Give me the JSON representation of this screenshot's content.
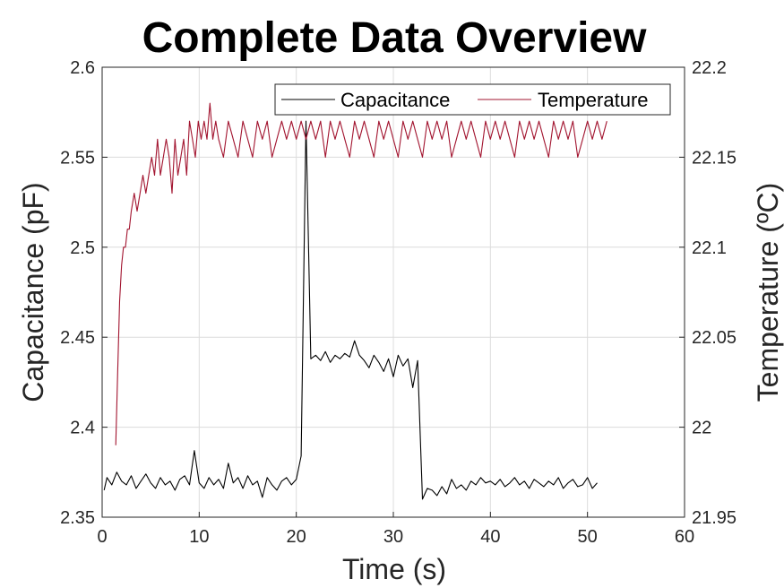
{
  "chart_data": {
    "type": "line",
    "title": "Complete Data Overview",
    "xlabel": "Time (s)",
    "ylabel_left": "Capacitance (pF)",
    "ylabel_right": "Temperature (ºC)",
    "xlim": [
      0,
      60
    ],
    "ylim_left": [
      2.35,
      2.6
    ],
    "ylim_right": [
      21.95,
      22.2
    ],
    "x_ticks": [
      "0",
      "10",
      "20",
      "30",
      "40",
      "50",
      "60"
    ],
    "y_ticks_left": [
      "2.35",
      "2.4",
      "2.45",
      "2.5",
      "2.55",
      "2.6"
    ],
    "y_ticks_right": [
      "21.95",
      "22",
      "22.05",
      "22.1",
      "22.15",
      "22.2"
    ],
    "grid": true,
    "legend_position": "top-right",
    "series": [
      {
        "name": "Capacitance",
        "axis": "left",
        "color": "#000000",
        "x": [
          0.2,
          0.5,
          1.0,
          1.5,
          2.0,
          2.5,
          3.0,
          3.5,
          4.0,
          4.5,
          5.0,
          5.5,
          6.0,
          6.5,
          7.0,
          7.5,
          8.0,
          8.5,
          9.0,
          9.5,
          10.0,
          10.5,
          11.0,
          11.5,
          12.0,
          12.5,
          13.0,
          13.5,
          14.0,
          14.5,
          15.0,
          15.5,
          16.0,
          16.5,
          17.0,
          17.5,
          18.0,
          18.5,
          19.0,
          19.5,
          20.0,
          20.5,
          21.0,
          21.5,
          22.0,
          22.5,
          23.0,
          23.5,
          24.0,
          24.5,
          25.0,
          25.5,
          26.0,
          26.5,
          27.0,
          27.5,
          28.0,
          28.5,
          29.0,
          29.5,
          30.0,
          30.5,
          31.0,
          31.5,
          32.0,
          32.5,
          33.0,
          33.5,
          34.0,
          34.5,
          35.0,
          35.5,
          36.0,
          36.5,
          37.0,
          37.5,
          38.0,
          38.5,
          39.0,
          39.5,
          40.0,
          40.5,
          41.0,
          41.5,
          42.0,
          42.5,
          43.0,
          43.5,
          44.0,
          44.5,
          45.0,
          45.5,
          46.0,
          46.5,
          47.0,
          47.5,
          48.0,
          48.5,
          49.0,
          49.5,
          50.0,
          50.5,
          51.0
        ],
        "y": [
          2.365,
          2.372,
          2.368,
          2.375,
          2.37,
          2.368,
          2.373,
          2.366,
          2.37,
          2.374,
          2.369,
          2.366,
          2.372,
          2.368,
          2.37,
          2.365,
          2.371,
          2.373,
          2.368,
          2.387,
          2.369,
          2.366,
          2.372,
          2.368,
          2.371,
          2.366,
          2.38,
          2.369,
          2.372,
          2.366,
          2.373,
          2.368,
          2.37,
          2.361,
          2.372,
          2.368,
          2.365,
          2.37,
          2.372,
          2.368,
          2.371,
          2.384,
          2.57,
          2.438,
          2.44,
          2.437,
          2.442,
          2.436,
          2.44,
          2.438,
          2.441,
          2.439,
          2.448,
          2.44,
          2.437,
          2.433,
          2.44,
          2.436,
          2.431,
          2.438,
          2.428,
          2.44,
          2.434,
          2.438,
          2.422,
          2.437,
          2.36,
          2.366,
          2.365,
          2.362,
          2.367,
          2.363,
          2.371,
          2.366,
          2.368,
          2.365,
          2.37,
          2.368,
          2.372,
          2.369,
          2.37,
          2.368,
          2.371,
          2.367,
          2.369,
          2.372,
          2.368,
          2.37,
          2.366,
          2.371,
          2.369,
          2.367,
          2.37,
          2.368,
          2.372,
          2.366,
          2.369,
          2.371,
          2.367,
          2.368,
          2.372,
          2.366,
          2.369
        ]
      },
      {
        "name": "Temperature",
        "axis": "right",
        "color": "#a2142f",
        "x": [
          1.4,
          1.6,
          1.8,
          2.0,
          2.2,
          2.4,
          2.6,
          2.8,
          3.0,
          3.3,
          3.6,
          3.9,
          4.2,
          4.5,
          4.8,
          5.1,
          5.4,
          5.7,
          6.0,
          6.3,
          6.6,
          6.9,
          7.2,
          7.5,
          7.8,
          8.1,
          8.4,
          8.7,
          9.0,
          9.3,
          9.6,
          9.9,
          10.2,
          10.5,
          10.8,
          11.1,
          11.4,
          11.7,
          12.0,
          12.5,
          13.0,
          13.5,
          14.0,
          14.5,
          15.0,
          15.5,
          16.0,
          16.5,
          17.0,
          17.5,
          18.0,
          18.5,
          19.0,
          19.5,
          20.0,
          20.5,
          21.0,
          21.5,
          22.0,
          22.5,
          23.0,
          23.5,
          24.0,
          24.5,
          25.0,
          25.5,
          26.0,
          26.5,
          27.0,
          27.5,
          28.0,
          28.5,
          29.0,
          29.5,
          30.0,
          30.5,
          31.0,
          31.5,
          32.0,
          32.5,
          33.0,
          33.5,
          34.0,
          34.5,
          35.0,
          35.5,
          36.0,
          36.5,
          37.0,
          37.5,
          38.0,
          38.5,
          39.0,
          39.5,
          40.0,
          40.5,
          41.0,
          41.5,
          42.0,
          42.5,
          43.0,
          43.5,
          44.0,
          44.5,
          45.0,
          45.5,
          46.0,
          46.5,
          47.0,
          47.5,
          48.0,
          48.5,
          49.0,
          49.5,
          50.0,
          50.5,
          51.0,
          51.5,
          52.0
        ],
        "y": [
          21.99,
          22.03,
          22.07,
          22.09,
          22.1,
          22.1,
          22.11,
          22.11,
          22.12,
          22.13,
          22.12,
          22.13,
          22.14,
          22.13,
          22.14,
          22.15,
          22.14,
          22.16,
          22.14,
          22.15,
          22.16,
          22.15,
          22.13,
          22.16,
          22.14,
          22.15,
          22.16,
          22.14,
          22.17,
          22.16,
          22.15,
          22.17,
          22.16,
          22.17,
          22.16,
          22.18,
          22.16,
          22.17,
          22.16,
          22.15,
          22.17,
          22.16,
          22.15,
          22.17,
          22.16,
          22.15,
          22.17,
          22.16,
          22.17,
          22.15,
          22.16,
          22.17,
          22.16,
          22.17,
          22.16,
          22.17,
          22.16,
          22.17,
          22.16,
          22.17,
          22.15,
          22.17,
          22.16,
          22.17,
          22.16,
          22.15,
          22.17,
          22.16,
          22.17,
          22.16,
          22.15,
          22.17,
          22.16,
          22.17,
          22.16,
          22.15,
          22.17,
          22.16,
          22.17,
          22.16,
          22.15,
          22.17,
          22.16,
          22.17,
          22.16,
          22.17,
          22.15,
          22.16,
          22.17,
          22.16,
          22.17,
          22.16,
          22.15,
          22.17,
          22.16,
          22.17,
          22.16,
          22.17,
          22.16,
          22.15,
          22.17,
          22.16,
          22.17,
          22.16,
          22.17,
          22.16,
          22.15,
          22.17,
          22.16,
          22.17,
          22.16,
          22.17,
          22.15,
          22.16,
          22.17,
          22.16,
          22.17,
          22.16,
          22.17
        ]
      }
    ]
  }
}
